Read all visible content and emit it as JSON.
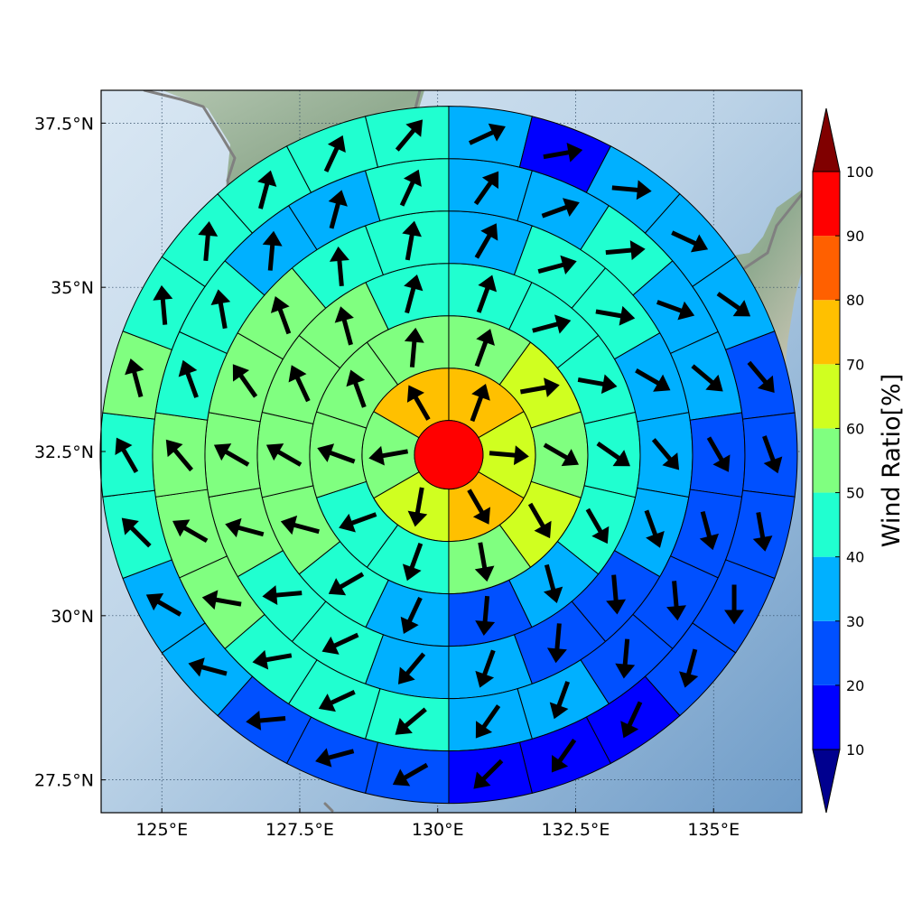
{
  "colorbar": {
    "title": "Wind Ratio[%]",
    "ticks": [
      "10",
      "20",
      "30",
      "40",
      "50",
      "60",
      "70",
      "80",
      "90",
      "100"
    ],
    "colors": [
      "#00008f",
      "#0000ff",
      "#0050ff",
      "#00b0ff",
      "#20ffd0",
      "#80ff80",
      "#d0ff20",
      "#ffc000",
      "#ff6000",
      "#ff0000",
      "#800000"
    ],
    "extend": "both"
  },
  "axes": {
    "x_ticks": [
      {
        "value": 125,
        "label": "125°E"
      },
      {
        "value": 127.5,
        "label": "127.5°E"
      },
      {
        "value": 130,
        "label": "130°E"
      },
      {
        "value": 132.5,
        "label": "132.5°E"
      },
      {
        "value": 135,
        "label": "135°E"
      }
    ],
    "y_ticks": [
      {
        "value": 37.5,
        "label": "37.5°N"
      },
      {
        "value": 35,
        "label": "35°N"
      },
      {
        "value": 32.5,
        "label": "32.5°N"
      },
      {
        "value": 30,
        "label": "30°N"
      },
      {
        "value": 27.5,
        "label": "27.5°N"
      }
    ],
    "lon_range": [
      123.9,
      136.6
    ],
    "lat_range": [
      27.0,
      38.0
    ]
  },
  "chart_data": {
    "type": "polar-sector-map",
    "center": {
      "lon": 130.2,
      "lat": 32.45
    },
    "units": "Wind Ratio[%]",
    "center_value": 95,
    "rings": [
      {
        "ring": 1,
        "values": [
          70,
          65,
          70,
          65,
          55,
          70
        ]
      },
      {
        "ring": 2,
        "values": [
          55,
          65,
          55,
          65,
          55,
          45,
          45,
          55,
          55,
          55
        ]
      },
      {
        "ring": 3,
        "values": [
          45,
          45,
          45,
          45,
          45,
          35,
          25,
          35,
          45,
          55,
          55,
          55,
          55,
          45
        ]
      },
      {
        "ring": 4,
        "values": [
          35,
          45,
          45,
          35,
          35,
          35,
          25,
          25,
          35,
          35,
          45,
          45,
          55,
          55,
          55,
          55,
          45,
          45
        ]
      },
      {
        "ring": 5,
        "values": [
          35,
          35,
          45,
          35,
          35,
          25,
          25,
          25,
          25,
          35,
          35,
          45,
          45,
          45,
          55,
          55,
          55,
          45,
          45,
          35,
          35,
          45
        ]
      },
      {
        "ring": 6,
        "values": [
          35,
          15,
          35,
          35,
          35,
          25,
          25,
          25,
          25,
          25,
          15,
          15,
          15,
          25,
          25,
          25,
          35,
          35,
          45,
          45,
          55,
          45,
          45,
          45,
          45,
          45
        ]
      }
    ],
    "wind_directions_deg": {
      "center": null,
      "ring1": [
        20,
        95,
        150,
        190,
        260,
        330
      ],
      "ring2": [
        20,
        80,
        120,
        150,
        170,
        200,
        250,
        290,
        340,
        5
      ],
      "ring3": [
        20,
        75,
        100,
        125,
        150,
        165,
        185,
        205,
        240,
        285,
        300,
        335,
        345,
        15
      ],
      "ring4": [
        30,
        75,
        100,
        120,
        140,
        160,
        175,
        185,
        200,
        220,
        245,
        265,
        285,
        300,
        325,
        340,
        355,
        10
      ],
      "ring5": [
        35,
        70,
        85,
        110,
        130,
        150,
        165,
        175,
        185,
        200,
        215,
        230,
        245,
        260,
        280,
        300,
        320,
        340,
        350,
        5,
        15,
        25
      ],
      "ring6": [
        65,
        80,
        95,
        115,
        125,
        140,
        160,
        170,
        180,
        195,
        205,
        215,
        225,
        240,
        255,
        265,
        285,
        300,
        315,
        330,
        345,
        355,
        5,
        15,
        25,
        40
      ]
    }
  }
}
